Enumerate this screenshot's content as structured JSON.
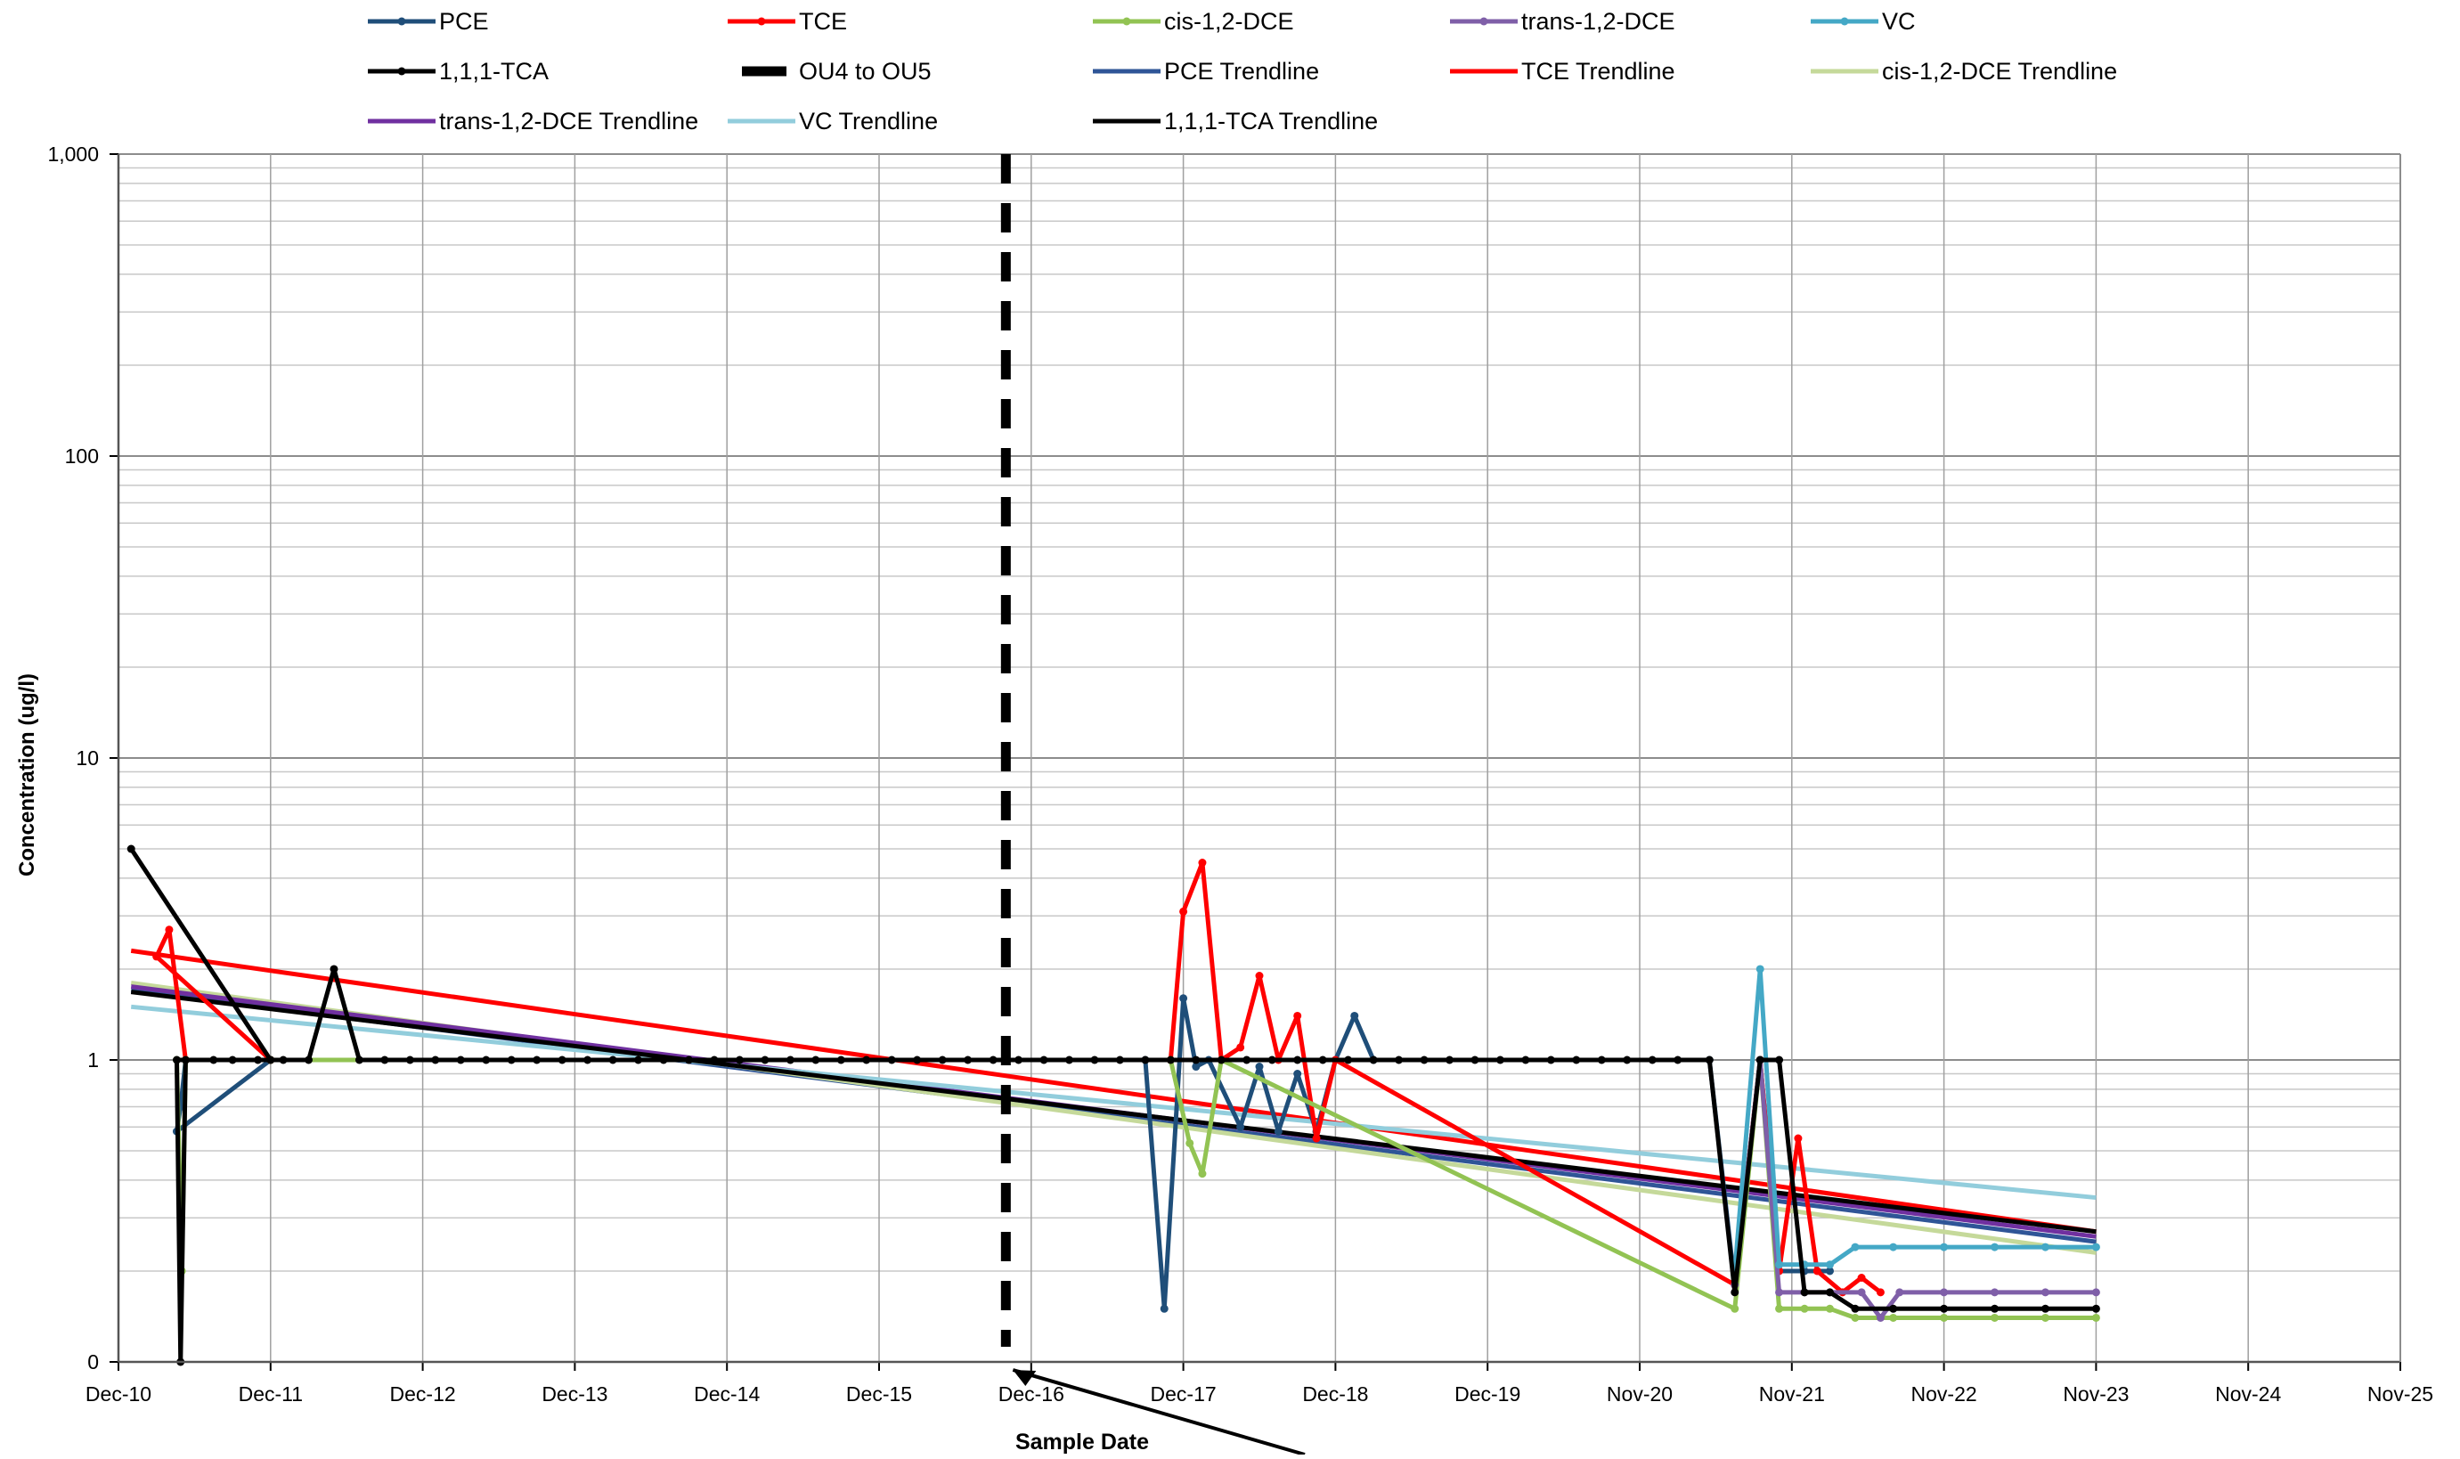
{
  "chart_data": {
    "type": "line",
    "title": "",
    "xlabel": "Sample Date",
    "ylabel": "Concentration (ug/l)",
    "yscale": "log",
    "ylim": [
      0.1,
      1000
    ],
    "y_ticks": [
      {
        "value": 0.1,
        "label": "0"
      },
      {
        "value": 1,
        "label": "1"
      },
      {
        "value": 10,
        "label": "10"
      },
      {
        "value": 100,
        "label": "100"
      },
      {
        "value": 1000,
        "label": "1,000"
      }
    ],
    "x_ticks": [
      "Dec-10",
      "Dec-11",
      "Dec-12",
      "Dec-13",
      "Dec-14",
      "Dec-15",
      "Dec-16",
      "Dec-17",
      "Dec-18",
      "Dec-19",
      "Nov-20",
      "Nov-21",
      "Nov-22",
      "Nov-23",
      "Nov-24",
      "Nov-25"
    ],
    "grid": true,
    "legend_position": "top",
    "legend": [
      {
        "label": "PCE",
        "color": "#1f4e79",
        "style": "line-marker"
      },
      {
        "label": "TCE",
        "color": "#ff0000",
        "style": "line-marker"
      },
      {
        "label": "cis-1,2-DCE",
        "color": "#92c353",
        "style": "line-marker"
      },
      {
        "label": "trans-1,2-DCE",
        "color": "#7f5fa8",
        "style": "line-marker"
      },
      {
        "label": "VC",
        "color": "#44a8c6",
        "style": "line-marker"
      },
      {
        "label": "1,1,1-TCA",
        "color": "#000000",
        "style": "line-marker"
      },
      {
        "label": "OU4 to OU5",
        "color": "#000000",
        "style": "dashed"
      },
      {
        "label": "PCE Trendline",
        "color": "#2f5597",
        "style": "line"
      },
      {
        "label": "TCE Trendline",
        "color": "#ff0000",
        "style": "line"
      },
      {
        "label": "cis-1,2-DCE Trendline",
        "color": "#c5d99a",
        "style": "line"
      },
      {
        "label": "trans-1,2-DCE Trendline",
        "color": "#7030a0",
        "style": "line"
      },
      {
        "label": "VC Trendline",
        "color": "#92cddc",
        "style": "line"
      },
      {
        "label": "1,1,1-TCA Trendline",
        "color": "#000000",
        "style": "line"
      }
    ],
    "series": [
      {
        "name": "PCE",
        "color": "#1f4e79",
        "points": [
          [
            "Dec-11",
            1.0
          ],
          [
            4.6,
            0.58
          ],
          [
            4.9,
            0.7
          ],
          [
            5.3,
            1.0
          ],
          [
            81.0,
            1.0
          ],
          [
            82.5,
            0.15
          ],
          [
            84.0,
            1.6
          ],
          [
            85.0,
            0.95
          ],
          [
            86.0,
            1.0
          ],
          [
            88.5,
            0.6
          ],
          [
            90.0,
            0.95
          ],
          [
            91.5,
            0.58
          ],
          [
            93.0,
            0.9
          ],
          [
            94.5,
            0.58
          ],
          [
            96.0,
            1.0
          ],
          [
            97.5,
            1.4
          ],
          [
            99.0,
            1.0
          ],
          [
            125.5,
            1.0
          ],
          [
            127.5,
            0.18
          ],
          [
            129.5,
            1.0
          ],
          [
            131.0,
            0.2
          ],
          [
            133.0,
            0.2
          ],
          [
            135.0,
            0.2
          ]
        ]
      },
      {
        "name": "TCE",
        "color": "#ff0000",
        "points": [
          [
            "Dec-11",
            1.0
          ],
          [
            3.0,
            2.2
          ],
          [
            4.0,
            2.7
          ],
          [
            5.3,
            1.0
          ],
          [
            83.0,
            1.0
          ],
          [
            84.0,
            3.1
          ],
          [
            85.5,
            4.5
          ],
          [
            87.0,
            1.0
          ],
          [
            88.5,
            1.1
          ],
          [
            90.0,
            1.9
          ],
          [
            91.5,
            1.0
          ],
          [
            93.0,
            1.4
          ],
          [
            94.5,
            0.55
          ],
          [
            96.0,
            1.0
          ],
          [
            127.5,
            0.18
          ],
          [
            129.5,
            1.0
          ],
          [
            131.0,
            0.2
          ],
          [
            132.5,
            0.55
          ],
          [
            134.0,
            0.2
          ],
          [
            136.0,
            0.17
          ],
          [
            137.5,
            0.19
          ],
          [
            139.0,
            0.17
          ]
        ]
      },
      {
        "name": "cis-1,2-DCE",
        "color": "#92c353",
        "points": [
          [
            "Dec-11",
            1.0
          ],
          [
            4.6,
            1.0
          ],
          [
            5.0,
            0.2
          ],
          [
            5.3,
            1.0
          ],
          [
            83.0,
            1.0
          ],
          [
            84.5,
            0.53
          ],
          [
            85.5,
            0.42
          ],
          [
            87.0,
            1.0
          ],
          [
            127.5,
            0.15
          ],
          [
            129.5,
            1.0
          ],
          [
            131.0,
            0.15
          ],
          [
            133.0,
            0.15
          ],
          [
            135.0,
            0.15
          ],
          [
            137.0,
            0.14
          ],
          [
            140.0,
            0.14
          ],
          [
            144.0,
            0.14
          ],
          [
            148.0,
            0.14
          ],
          [
            152.0,
            0.14
          ],
          [
            156.0,
            0.14
          ]
        ]
      },
      {
        "name": "trans-1,2-DCE",
        "color": "#7f5fa8",
        "points": [
          [
            127.5,
            0.18
          ],
          [
            129.5,
            1.0
          ],
          [
            131.0,
            0.17
          ],
          [
            133.0,
            0.17
          ],
          [
            135.0,
            0.17
          ],
          [
            137.5,
            0.17
          ],
          [
            139.0,
            0.14
          ],
          [
            140.5,
            0.17
          ],
          [
            144.0,
            0.17
          ],
          [
            148.0,
            0.17
          ],
          [
            152.0,
            0.17
          ],
          [
            156.0,
            0.17
          ]
        ]
      },
      {
        "name": "VC",
        "color": "#44a8c6",
        "points": [
          [
            127.5,
            0.2
          ],
          [
            129.5,
            2.0
          ],
          [
            131.0,
            0.21
          ],
          [
            133.0,
            0.21
          ],
          [
            135.0,
            0.21
          ],
          [
            137.0,
            0.24
          ],
          [
            140.0,
            0.24
          ],
          [
            144.0,
            0.24
          ],
          [
            148.0,
            0.24
          ],
          [
            152.0,
            0.24
          ],
          [
            156.0,
            0.24
          ]
        ]
      },
      {
        "name": "1,1,1-TCA",
        "color": "#000000",
        "points": [
          [
            1.0,
            5.0
          ],
          [
            "Dec-11",
            1.0
          ],
          [
            4.6,
            1.0
          ],
          [
            4.9,
            0.1
          ],
          [
            5.3,
            1.0
          ],
          [
            7.5,
            1.0
          ],
          [
            9.0,
            1.0
          ],
          [
            11.0,
            1.0
          ],
          [
            13.0,
            1.0
          ],
          [
            15.0,
            1.0
          ],
          [
            17.0,
            2.0
          ],
          [
            19.0,
            1.0
          ],
          [
            21.0,
            1.0
          ],
          [
            23.0,
            1.0
          ],
          [
            25.0,
            1.0
          ],
          [
            27.0,
            1.0
          ],
          [
            29.0,
            1.0
          ],
          [
            31.0,
            1.0
          ],
          [
            33.0,
            1.0
          ],
          [
            35.0,
            1.0
          ],
          [
            37.0,
            1.0
          ],
          [
            39.0,
            1.0
          ],
          [
            41.0,
            1.0
          ],
          [
            43.0,
            1.0
          ],
          [
            45.0,
            1.0
          ],
          [
            47.0,
            1.0
          ],
          [
            49.0,
            1.0
          ],
          [
            51.0,
            1.0
          ],
          [
            53.0,
            1.0
          ],
          [
            55.0,
            1.0
          ],
          [
            57.0,
            1.0
          ],
          [
            59.0,
            1.0
          ],
          [
            61.0,
            1.0
          ],
          [
            63.0,
            1.0
          ],
          [
            65.0,
            1.0
          ],
          [
            67.0,
            1.0
          ],
          [
            69.0,
            1.0
          ],
          [
            71.0,
            1.0
          ],
          [
            73.0,
            1.0
          ],
          [
            75.0,
            1.0
          ],
          [
            77.0,
            1.0
          ],
          [
            79.0,
            1.0
          ],
          [
            81.0,
            1.0
          ],
          [
            83.0,
            1.0
          ],
          [
            85.0,
            1.0
          ],
          [
            87.0,
            1.0
          ],
          [
            89.0,
            1.0
          ],
          [
            91.0,
            1.0
          ],
          [
            93.0,
            1.0
          ],
          [
            95.0,
            1.0
          ],
          [
            97.0,
            1.0
          ],
          [
            99.0,
            1.0
          ],
          [
            101.0,
            1.0
          ],
          [
            103.0,
            1.0
          ],
          [
            105.0,
            1.0
          ],
          [
            107.0,
            1.0
          ],
          [
            109.0,
            1.0
          ],
          [
            111.0,
            1.0
          ],
          [
            113.0,
            1.0
          ],
          [
            115.0,
            1.0
          ],
          [
            117.0,
            1.0
          ],
          [
            119.0,
            1.0
          ],
          [
            121.0,
            1.0
          ],
          [
            123.0,
            1.0
          ],
          [
            125.5,
            1.0
          ],
          [
            127.5,
            0.17
          ],
          [
            129.5,
            1.0
          ],
          [
            131.0,
            1.0
          ],
          [
            133.0,
            0.17
          ],
          [
            135.0,
            0.17
          ],
          [
            137.0,
            0.15
          ],
          [
            140.0,
            0.15
          ],
          [
            144.0,
            0.15
          ],
          [
            148.0,
            0.15
          ],
          [
            152.0,
            0.15
          ],
          [
            156.0,
            0.15
          ]
        ]
      }
    ],
    "trendlines": [
      {
        "name": "PCE Trendline",
        "color": "#2f5597",
        "from": [
          1.0,
          1.7
        ],
        "to": [
          156.0,
          0.25
        ]
      },
      {
        "name": "TCE Trendline",
        "color": "#ff0000",
        "from": [
          1.0,
          2.3
        ],
        "to": [
          156.0,
          0.27
        ]
      },
      {
        "name": "cis-1,2-DCE Trendline",
        "color": "#c5d99a",
        "from": [
          1.0,
          1.8
        ],
        "to": [
          156.0,
          0.23
        ]
      },
      {
        "name": "trans-1,2-DCE Trendline",
        "color": "#7030a0",
        "from": [
          1.0,
          1.75
        ],
        "to": [
          156.0,
          0.26
        ]
      },
      {
        "name": "VC Trendline",
        "color": "#92cddc",
        "from": [
          1.0,
          1.5
        ],
        "to": [
          156.0,
          0.35
        ]
      },
      {
        "name": "1,1,1-TCA Trendline",
        "color": "#000000",
        "from": [
          1.0,
          1.68
        ],
        "to": [
          156.0,
          0.27
        ]
      }
    ],
    "vertical_marker": {
      "name": "OU4 to OU5",
      "x": 70.0
    },
    "annotation": {
      "text": "",
      "arrow_to": [
        70.0,
        0.1
      ]
    }
  }
}
